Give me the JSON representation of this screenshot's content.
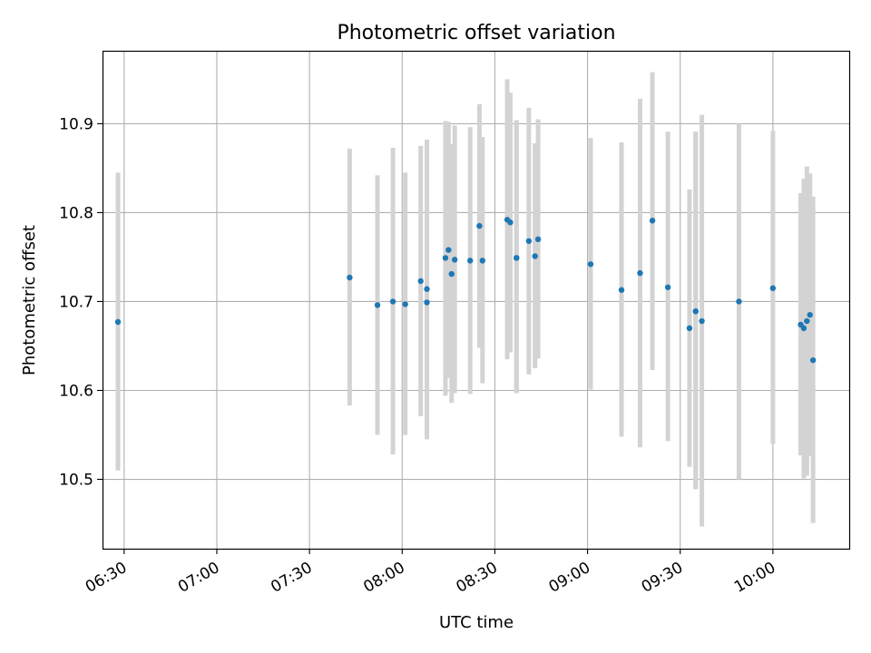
{
  "chart_data": {
    "type": "scatter",
    "title": "Photometric offset variation",
    "xlabel": "UTC time",
    "ylabel": "Photometric offset",
    "xlim": [
      "06:23",
      "10:25"
    ],
    "ylim": [
      10.422,
      10.982
    ],
    "x_ticks": [
      "06:30",
      "07:00",
      "07:30",
      "08:00",
      "08:30",
      "09:00",
      "09:30",
      "10:00"
    ],
    "y_ticks": [
      "10.5",
      "10.6",
      "10.7",
      "10.8",
      "10.9"
    ],
    "grid": true,
    "colors": {
      "point": "#1f77b4",
      "errorbar": "#d3d3d3",
      "grid": "#b0b0b0"
    },
    "points": [
      {
        "x": "06:28",
        "y": 10.677,
        "ylow": 10.51,
        "yhigh": 10.845
      },
      {
        "x": "07:43",
        "y": 10.727,
        "ylow": 10.583,
        "yhigh": 10.872
      },
      {
        "x": "07:52",
        "y": 10.696,
        "ylow": 10.55,
        "yhigh": 10.842
      },
      {
        "x": "07:57",
        "y": 10.7,
        "ylow": 10.528,
        "yhigh": 10.873
      },
      {
        "x": "08:01",
        "y": 10.697,
        "ylow": 10.55,
        "yhigh": 10.845
      },
      {
        "x": "08:06",
        "y": 10.723,
        "ylow": 10.571,
        "yhigh": 10.875
      },
      {
        "x": "08:08",
        "y": 10.714,
        "ylow": 10.545,
        "yhigh": 10.882
      },
      {
        "x": "08:08",
        "y": 10.699,
        "ylow": 10.557,
        "yhigh": 10.842
      },
      {
        "x": "08:14",
        "y": 10.749,
        "ylow": 10.594,
        "yhigh": 10.903
      },
      {
        "x": "08:15",
        "y": 10.758,
        "ylow": 10.614,
        "yhigh": 10.902
      },
      {
        "x": "08:16",
        "y": 10.731,
        "ylow": 10.586,
        "yhigh": 10.877
      },
      {
        "x": "08:17",
        "y": 10.747,
        "ylow": 10.597,
        "yhigh": 10.898
      },
      {
        "x": "08:22",
        "y": 10.746,
        "ylow": 10.596,
        "yhigh": 10.896
      },
      {
        "x": "08:25",
        "y": 10.785,
        "ylow": 10.648,
        "yhigh": 10.922
      },
      {
        "x": "08:26",
        "y": 10.746,
        "ylow": 10.608,
        "yhigh": 10.885
      },
      {
        "x": "08:34",
        "y": 10.792,
        "ylow": 10.635,
        "yhigh": 10.95
      },
      {
        "x": "08:35",
        "y": 10.789,
        "ylow": 10.643,
        "yhigh": 10.935
      },
      {
        "x": "08:37",
        "y": 10.749,
        "ylow": 10.597,
        "yhigh": 10.904
      },
      {
        "x": "08:37",
        "y": 10.749,
        "ylow": 10.598,
        "yhigh": 10.901
      },
      {
        "x": "08:41",
        "y": 10.768,
        "ylow": 10.618,
        "yhigh": 10.918
      },
      {
        "x": "08:43",
        "y": 10.751,
        "ylow": 10.625,
        "yhigh": 10.878
      },
      {
        "x": "08:44",
        "y": 10.77,
        "ylow": 10.636,
        "yhigh": 10.905
      },
      {
        "x": "09:01",
        "y": 10.742,
        "ylow": 10.601,
        "yhigh": 10.884
      },
      {
        "x": "09:11",
        "y": 10.713,
        "ylow": 10.548,
        "yhigh": 10.879
      },
      {
        "x": "09:17",
        "y": 10.732,
        "ylow": 10.536,
        "yhigh": 10.928
      },
      {
        "x": "09:21",
        "y": 10.791,
        "ylow": 10.623,
        "yhigh": 10.958
      },
      {
        "x": "09:26",
        "y": 10.716,
        "ylow": 10.543,
        "yhigh": 10.891
      },
      {
        "x": "09:33",
        "y": 10.67,
        "ylow": 10.514,
        "yhigh": 10.826
      },
      {
        "x": "09:35",
        "y": 10.689,
        "ylow": 10.489,
        "yhigh": 10.891
      },
      {
        "x": "09:35",
        "y": 10.689,
        "ylow": 10.489,
        "yhigh": 10.891
      },
      {
        "x": "09:37",
        "y": 10.678,
        "ylow": 10.447,
        "yhigh": 10.91
      },
      {
        "x": "09:49",
        "y": 10.7,
        "ylow": 10.5,
        "yhigh": 10.9
      },
      {
        "x": "10:00",
        "y": 10.715,
        "ylow": 10.54,
        "yhigh": 10.892
      },
      {
        "x": "10:09",
        "y": 10.674,
        "ylow": 10.527,
        "yhigh": 10.822
      },
      {
        "x": "10:10",
        "y": 10.67,
        "ylow": 10.501,
        "yhigh": 10.838
      },
      {
        "x": "10:11",
        "y": 10.678,
        "ylow": 10.504,
        "yhigh": 10.852
      },
      {
        "x": "10:12",
        "y": 10.685,
        "ylow": 10.526,
        "yhigh": 10.844
      },
      {
        "x": "10:13",
        "y": 10.634,
        "ylow": 10.451,
        "yhigh": 10.818
      }
    ]
  }
}
